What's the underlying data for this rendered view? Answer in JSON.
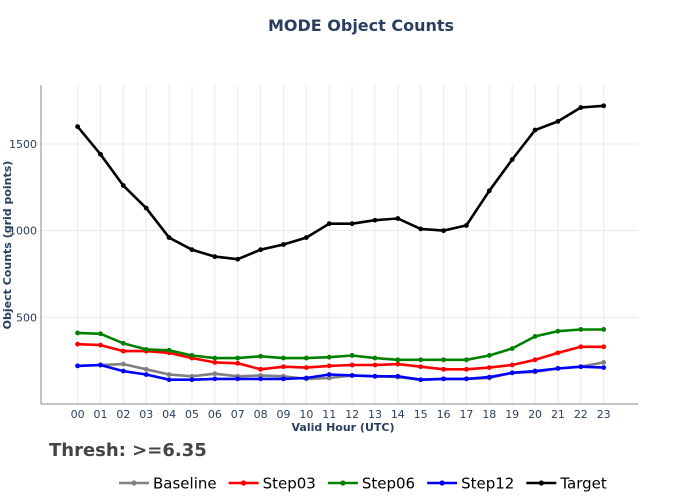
{
  "chart_data": {
    "type": "line",
    "title": "MODE Object Counts",
    "xlabel": "Valid Hour (UTC)",
    "ylabel": "Object Counts (grid points)",
    "annotation": "Thresh: >=6.35",
    "categories": [
      "00",
      "01",
      "02",
      "03",
      "04",
      "05",
      "06",
      "07",
      "08",
      "09",
      "10",
      "11",
      "12",
      "13",
      "14",
      "15",
      "16",
      "17",
      "18",
      "19",
      "20",
      "21",
      "22",
      "23"
    ],
    "xrange": [
      -1.6,
      24.5
    ],
    "ylim": [
      0,
      1840
    ],
    "yticks": [
      500,
      1000,
      1500
    ],
    "legend_position": "bottom",
    "series": [
      {
        "name": "Baseline",
        "color": "#808080",
        "values": [
          220,
          225,
          230,
          200,
          170,
          160,
          175,
          160,
          165,
          160,
          145,
          150,
          165,
          160,
          155,
          140,
          145,
          145,
          150,
          180,
          185,
          205,
          215,
          240
        ]
      },
      {
        "name": "Step03",
        "color": "#ff0000",
        "values": [
          345,
          340,
          305,
          305,
          295,
          265,
          240,
          235,
          200,
          215,
          210,
          220,
          225,
          225,
          230,
          215,
          200,
          200,
          210,
          225,
          255,
          295,
          330,
          330
        ]
      },
      {
        "name": "Step06",
        "color": "#008000",
        "values": [
          410,
          405,
          350,
          315,
          310,
          280,
          265,
          265,
          275,
          265,
          265,
          270,
          280,
          265,
          255,
          255,
          255,
          255,
          280,
          320,
          390,
          420,
          430,
          430
        ]
      },
      {
        "name": "Step12",
        "color": "#0000ff",
        "values": [
          220,
          225,
          190,
          170,
          140,
          140,
          145,
          145,
          145,
          145,
          150,
          170,
          165,
          160,
          160,
          140,
          145,
          145,
          155,
          180,
          190,
          205,
          215,
          210
        ]
      },
      {
        "name": "Target",
        "color": "#000000",
        "values": [
          1600,
          1440,
          1260,
          1130,
          960,
          890,
          850,
          835,
          890,
          920,
          960,
          1040,
          1040,
          1060,
          1070,
          1010,
          1000,
          1030,
          1230,
          1410,
          1580,
          1630,
          1710,
          1720
        ]
      }
    ]
  }
}
